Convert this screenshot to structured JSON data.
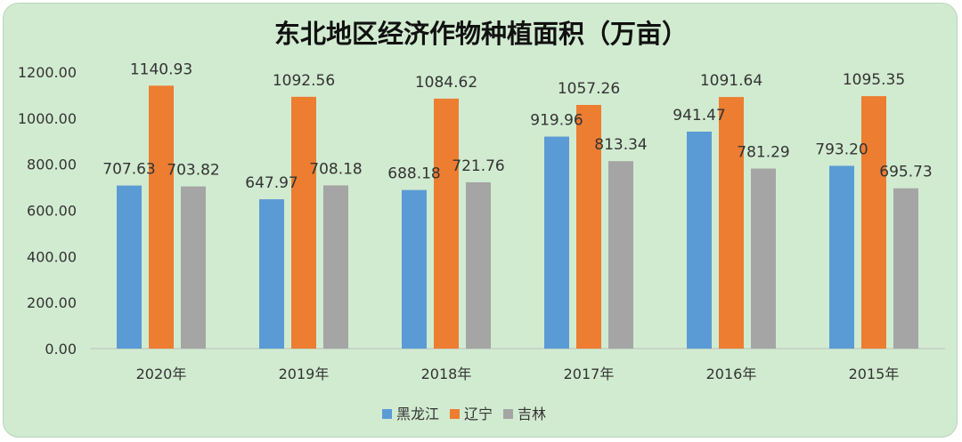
{
  "chart_data": {
    "type": "bar",
    "title": "东北地区经济作物种植面积（万亩）",
    "categories": [
      "2020年",
      "2019年",
      "2018年",
      "2017年",
      "2016年",
      "2015年"
    ],
    "series": [
      {
        "name": "黑龙江",
        "color": "#5b9bd5",
        "values": [
          707.63,
          647.97,
          688.18,
          919.96,
          941.47,
          793.2
        ],
        "labels": [
          "707.63",
          "647.97",
          "688.18",
          "919.96",
          "941.47",
          "793.20"
        ]
      },
      {
        "name": "辽宁",
        "color": "#ed7d31",
        "values": [
          1140.93,
          1092.56,
          1084.62,
          1057.26,
          1091.64,
          1095.35
        ],
        "labels": [
          "1140.93",
          "1092.56",
          "1084.62",
          "1057.26",
          "1091.64",
          "1095.35"
        ]
      },
      {
        "name": "吉林",
        "color": "#a5a5a5",
        "values": [
          703.82,
          708.18,
          721.76,
          813.34,
          781.29,
          695.73
        ],
        "labels": [
          "703.82",
          "708.18",
          "721.76",
          "813.34",
          "781.29",
          "695.73"
        ]
      }
    ],
    "ylim": [
      0,
      1200
    ],
    "yticks": [
      "0.00",
      "200.00",
      "400.00",
      "600.00",
      "800.00",
      "1000.00",
      "1200.00"
    ],
    "xlabel": "",
    "ylabel": "",
    "grid": false,
    "legend_position": "bottom"
  }
}
